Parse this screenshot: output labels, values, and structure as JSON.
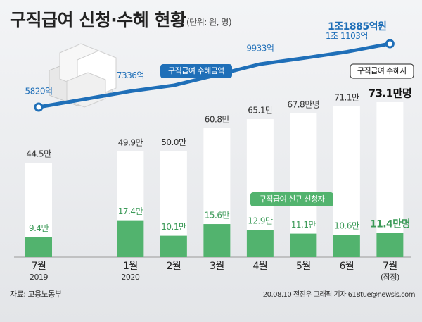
{
  "chart_data": {
    "type": "bar",
    "title": "구직급여 신청·수혜 현황",
    "subtitle": "(단위: 원, 명)",
    "categories": [
      "7월",
      "1월",
      "2월",
      "3월",
      "4월",
      "5월",
      "6월",
      "7월"
    ],
    "category_notes": [
      "2019",
      "2020",
      null,
      null,
      null,
      null,
      null,
      "(잠정)"
    ],
    "series": [
      {
        "name": "구직급여 수혜자",
        "type": "bar",
        "color": "#ffffff",
        "values": [
          44.5,
          49.9,
          50.0,
          60.8,
          65.1,
          67.8,
          71.1,
          73.1
        ],
        "value_labels": [
          "44.5만",
          "49.9만",
          "50.0만",
          "60.8만",
          "65.1만",
          "67.8만명",
          "71.1만",
          "73.1만명"
        ]
      },
      {
        "name": "구직급여 신규 신청자",
        "type": "bar",
        "color": "#52b36e",
        "values": [
          9.4,
          17.4,
          10.1,
          15.6,
          12.9,
          11.1,
          10.6,
          11.4
        ],
        "value_labels": [
          "9.4만",
          "17.4만",
          "10.1만",
          "15.6만",
          "12.9만",
          "11.1만",
          "10.6만",
          "11.4만명"
        ]
      },
      {
        "name": "구직급여 수혜금액",
        "type": "line",
        "color": "#1f6fb8",
        "values": [
          5820,
          7336,
          7900,
          8900,
          9933,
          10500,
          11103,
          11885
        ],
        "value_labels": [
          "5820억",
          "7336억",
          null,
          null,
          "9933억",
          null,
          "1조 1103억",
          "1조1885억원"
        ]
      }
    ],
    "source": "자료: 고용노동부",
    "credit": "20.08.10 전진우 그래픽 기자 618tue@newsis.com"
  }
}
